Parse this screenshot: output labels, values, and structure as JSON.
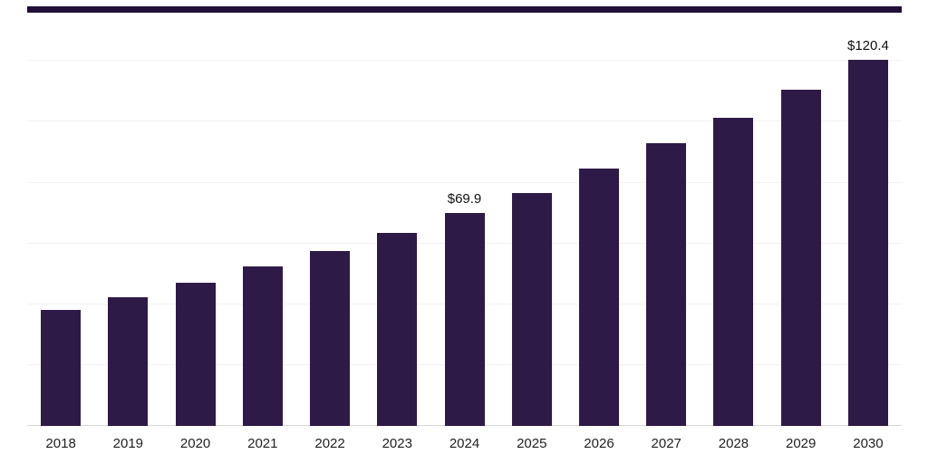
{
  "chart_data": {
    "type": "bar",
    "title": "",
    "xlabel": "",
    "ylabel": "",
    "categories": [
      "2018",
      "2019",
      "2020",
      "2021",
      "2022",
      "2023",
      "2024",
      "2025",
      "2026",
      "2027",
      "2028",
      "2029",
      "2030"
    ],
    "values": [
      38.2,
      42.3,
      47.1,
      52.4,
      57.5,
      63.5,
      69.9,
      76.6,
      84.6,
      93.0,
      101.3,
      110.6,
      120.4
    ],
    "data_labels": {
      "2024": "$69.9",
      "2030": "$120.4"
    },
    "ylim": [
      0,
      124
    ],
    "grid": "horizontal",
    "gridline_values": [
      20,
      40,
      60,
      80,
      100,
      120
    ],
    "legend_position": "none",
    "colors": {
      "bar": "#2e1a47",
      "accent_bar": "#221038",
      "gridline": "#f2f2f2",
      "baseline": "#d6d6d6",
      "label_text": "#111111",
      "tick_text": "#222222",
      "background": "#ffffff"
    }
  }
}
